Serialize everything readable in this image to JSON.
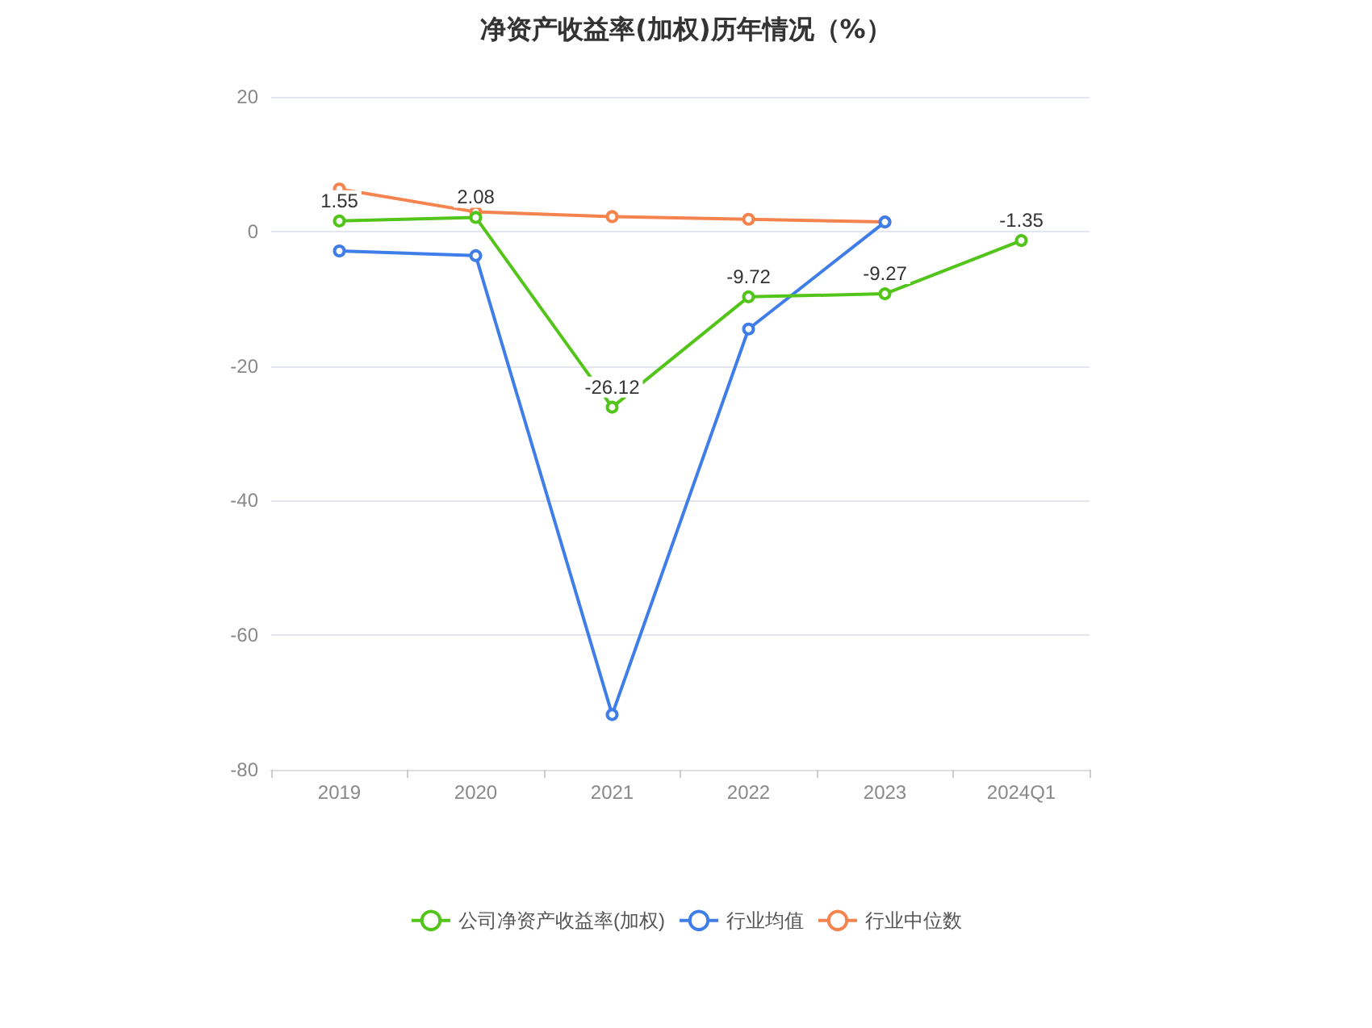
{
  "chart_data": {
    "type": "line",
    "title": "净资产收益率(加权)历年情况（%）",
    "categories": [
      "2019",
      "2020",
      "2021",
      "2022",
      "2023",
      "2024Q1"
    ],
    "series": [
      {
        "name": "公司净资产收益率(加权)",
        "color": "#52c41a",
        "values": [
          1.55,
          2.08,
          -26.12,
          -9.72,
          -9.27,
          -1.35
        ],
        "value_labels": [
          "1.55",
          "2.08",
          "-26.12",
          "-9.72",
          "-9.27",
          "-1.35"
        ]
      },
      {
        "name": "行业均值",
        "color": "#3f7de8",
        "values": [
          -2.9,
          -3.6,
          -71.8,
          -14.5,
          1.4,
          null
        ]
      },
      {
        "name": "行业中位数",
        "color": "#f5834e",
        "values": [
          6.3,
          2.9,
          2.2,
          1.8,
          1.4,
          null
        ]
      }
    ],
    "ylim": [
      -80,
      20
    ],
    "yticks": [
      -80,
      -60,
      -40,
      -20,
      0,
      20
    ],
    "grid": "y",
    "legend": "bottom",
    "marker": "circle",
    "line_style": "solid"
  }
}
